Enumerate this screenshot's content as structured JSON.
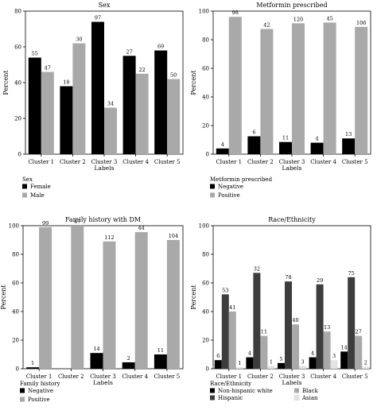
{
  "chart_data": [
    {
      "type": "bar",
      "title": "Sex",
      "xlabel": "Labels",
      "ylabel": "Percent",
      "ylim": [
        0,
        80
      ],
      "yticks": [
        0,
        20,
        40,
        60,
        80
      ],
      "grid": false,
      "categories": [
        "Cluster 1",
        "Cluster 2",
        "Cluster 3",
        "Cluster 4",
        "Cluster 5"
      ],
      "series": [
        {
          "name": "Female",
          "color": "#000000",
          "values": [
            54,
            38,
            74,
            55,
            58
          ],
          "labels": [
            "55",
            "18",
            "97",
            "27",
            "69"
          ]
        },
        {
          "name": "Male",
          "color": "#a9a9a9",
          "values": [
            46,
            62,
            26,
            45,
            42
          ],
          "labels": [
            "47",
            "30",
            "34",
            "22",
            "50"
          ]
        }
      ],
      "legend_title": "Sex",
      "legend_placement": "bottom-left"
    },
    {
      "type": "bar",
      "title": "Metformin prescribed",
      "xlabel": "Labels",
      "ylabel": "Percent",
      "ylim": [
        0,
        100
      ],
      "yticks": [
        0,
        20,
        40,
        60,
        80,
        100
      ],
      "grid": false,
      "categories": [
        "Cluster 1",
        "Cluster 2",
        "Cluster 3",
        "Cluster 4",
        "Cluster 5"
      ],
      "series": [
        {
          "name": "Negative",
          "color": "#000000",
          "values": [
            4,
            12.5,
            8.5,
            8,
            11
          ],
          "labels": [
            "4",
            "6",
            "11",
            "4",
            "13"
          ]
        },
        {
          "name": "Positive",
          "color": "#a9a9a9",
          "values": [
            96,
            87.5,
            91.5,
            92,
            89
          ],
          "labels": [
            "98",
            "42",
            "120",
            "45",
            "106"
          ]
        }
      ],
      "legend_title": "Metformin prescribed",
      "legend_placement": "bottom-left"
    },
    {
      "type": "bar",
      "title": "Family history with DM",
      "xlabel": "Labels",
      "ylabel": "Percent",
      "ylim": [
        0,
        100
      ],
      "yticks": [
        0,
        20,
        40,
        60,
        80,
        100
      ],
      "grid": false,
      "categories": [
        "Cluster 1",
        "Cluster 2",
        "Cluster 3",
        "Cluster 4",
        "Cluster 5"
      ],
      "series": [
        {
          "name": "Negative",
          "color": "#000000",
          "values": [
            1,
            0,
            11,
            4.5,
            10
          ],
          "labels": [
            "1",
            "",
            "14",
            "2",
            "11"
          ]
        },
        {
          "name": "Positive",
          "color": "#a9a9a9",
          "values": [
            99,
            100,
            89,
            95.5,
            90
          ],
          "labels": [
            "99",
            "47",
            "112",
            "44",
            "104"
          ]
        }
      ],
      "legend_title": "Family history",
      "legend_placement": "bottom-left"
    },
    {
      "type": "bar",
      "title": "Race/Ethnicity",
      "xlabel": "Labels",
      "ylabel": "Percent",
      "ylim": [
        0,
        100
      ],
      "yticks": [
        0,
        20,
        40,
        60,
        80,
        100
      ],
      "grid": false,
      "categories": [
        "Cluster 1",
        "Cluster 2",
        "Cluster 3",
        "Cluster 4",
        "Cluster 5"
      ],
      "series": [
        {
          "name": "Non-hispanic white",
          "color": "#000000",
          "values": [
            6,
            8,
            4,
            8,
            12
          ],
          "labels": [
            "6",
            "4",
            "5",
            "4",
            "14"
          ]
        },
        {
          "name": "Hispanic",
          "color": "#3d3d3d",
          "values": [
            52,
            67,
            61,
            59,
            64
          ],
          "labels": [
            "53",
            "32",
            "78",
            "29",
            "75"
          ]
        },
        {
          "name": "Black",
          "color": "#a9a9a9",
          "values": [
            40,
            23,
            31,
            26,
            23
          ],
          "labels": [
            "41",
            "11",
            "40",
            "13",
            "27"
          ]
        },
        {
          "name": "Asian",
          "color": "#e3e3e3",
          "values": [
            1,
            2,
            2,
            6,
            1.5
          ],
          "labels": [
            "1",
            "1",
            "3",
            "3",
            "2"
          ]
        }
      ],
      "legend_title": "Race/Ethnicity",
      "legend_placement": "bottom-left"
    }
  ]
}
